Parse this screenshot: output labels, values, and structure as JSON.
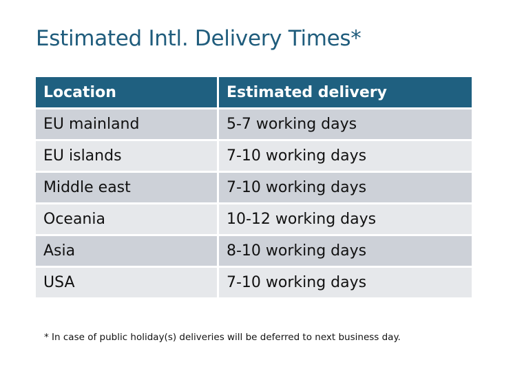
{
  "title": "Estimated Intl. Delivery Times*",
  "table": {
    "headers": [
      "Location",
      "Estimated delivery"
    ],
    "rows": [
      [
        "EU mainland",
        "5-7 working days"
      ],
      [
        "EU islands",
        "7-10 working days"
      ],
      [
        "Middle east",
        "7-10 working days"
      ],
      [
        "Oceania",
        "10-12 working days"
      ],
      [
        "Asia",
        "8-10 working days"
      ],
      [
        "USA",
        "7-10 working days"
      ]
    ]
  },
  "footnote": "* In case of public holiday(s) deliveries will be deferred to next business day.",
  "colors": {
    "header": "#1f6080",
    "row_dark": "#cdd1d8",
    "row_light": "#e6e8eb",
    "title": "#1f5c7c"
  }
}
